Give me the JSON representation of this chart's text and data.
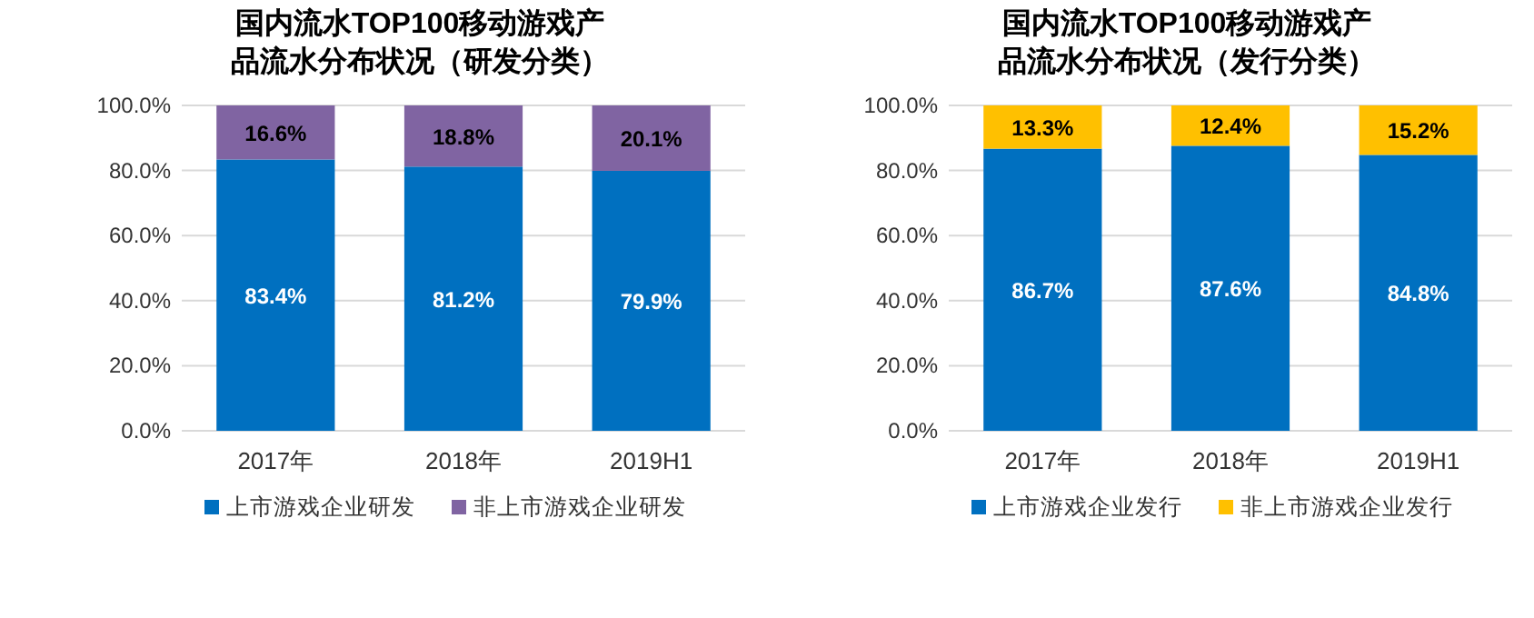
{
  "chart_data": [
    {
      "type": "bar",
      "stacked": true,
      "title": "国内流水TOP100移动游戏产品流水分布状况（研发分类）",
      "categories": [
        "2017年",
        "2018年",
        "2019H1"
      ],
      "ylim": [
        0,
        100
      ],
      "yticks": [
        {
          "value": 0,
          "label": "0.0%"
        },
        {
          "value": 20,
          "label": "20.0%"
        },
        {
          "value": 40,
          "label": "40.0%"
        },
        {
          "value": 60,
          "label": "60.0%"
        },
        {
          "value": 80,
          "label": "80.0%"
        },
        {
          "value": 100,
          "label": "100.0%"
        }
      ],
      "grid": "y",
      "legend": "bottom",
      "series": [
        {
          "name": "上市游戏企业研发",
          "color": "#0070c0",
          "values": [
            83.4,
            81.2,
            79.9
          ],
          "value_labels": [
            "83.4%",
            "81.2%",
            "79.9%"
          ]
        },
        {
          "name": "非上市游戏企业研发",
          "color": "#8064a2",
          "values": [
            16.6,
            18.8,
            20.1
          ],
          "value_labels": [
            "16.6%",
            "18.8%",
            "20.1%"
          ]
        }
      ]
    },
    {
      "type": "bar",
      "stacked": true,
      "title": "国内流水TOP100移动游戏产品流水分布状况（发行分类）",
      "categories": [
        "2017年",
        "2018年",
        "2019H1"
      ],
      "ylim": [
        0,
        100
      ],
      "yticks": [
        {
          "value": 0,
          "label": "0.0%"
        },
        {
          "value": 20,
          "label": "20.0%"
        },
        {
          "value": 40,
          "label": "40.0%"
        },
        {
          "value": 60,
          "label": "60.0%"
        },
        {
          "value": 80,
          "label": "80.0%"
        },
        {
          "value": 100,
          "label": "100.0%"
        }
      ],
      "grid": "y",
      "legend": "bottom",
      "series": [
        {
          "name": "上市游戏企业发行",
          "color": "#0070c0",
          "values": [
            86.7,
            87.6,
            84.8
          ],
          "value_labels": [
            "86.7%",
            "87.6%",
            "84.8%"
          ]
        },
        {
          "name": "非上市游戏企业发行",
          "color": "#ffc000",
          "values": [
            13.3,
            12.4,
            15.2
          ],
          "value_labels": [
            "13.3%",
            "12.4%",
            "15.2%"
          ]
        }
      ]
    }
  ]
}
